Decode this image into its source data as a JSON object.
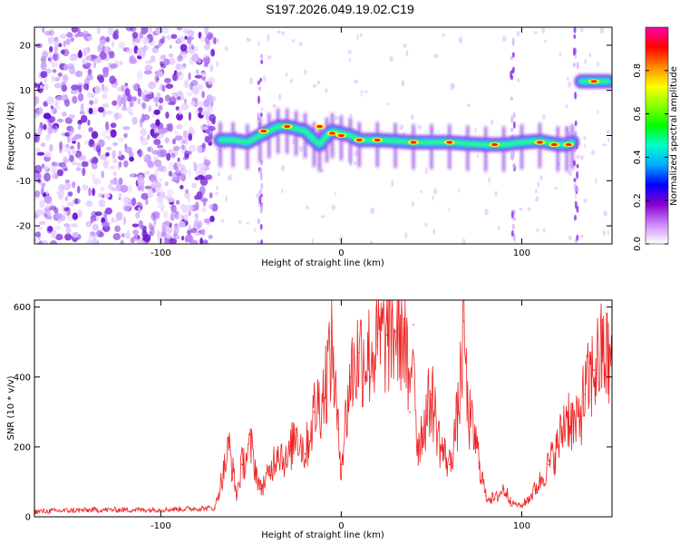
{
  "title": "S197.2026.049.19.02.C19",
  "colorbar": {
    "label": "Normalized spectral amplitude",
    "ticks": [
      "0.0",
      "0.2",
      "0.4",
      "0.6",
      "0.8"
    ],
    "stops": [
      "#ffffff",
      "#cc88ff",
      "#8800cc",
      "#0000ff",
      "#00aaff",
      "#00ffcc",
      "#00ff00",
      "#88ff00",
      "#ffff00",
      "#ff8800",
      "#ff0000",
      "#ff00aa"
    ]
  },
  "chart_data": [
    {
      "type": "heatmap",
      "xlabel": "Height of straight line (km)",
      "ylabel": "Frequency (Hz)",
      "xlim": [
        -170,
        150
      ],
      "ylim": [
        -24,
        24
      ],
      "xticks": [
        -100,
        0,
        100
      ],
      "xtick_labels": [
        "-100",
        "0",
        "100"
      ],
      "yticks": [
        20,
        10,
        0,
        -10,
        -20
      ],
      "ytick_labels": [
        "20",
        "10",
        "0",
        "-10",
        "-20"
      ],
      "noise_region_x": [
        -170,
        -70
      ],
      "ridge": {
        "x": [
          -67,
          -60,
          -52,
          -45,
          -40,
          -35,
          -30,
          -25,
          -20,
          -15,
          -12,
          -8,
          -5,
          0,
          5,
          10,
          20,
          30,
          40,
          50,
          60,
          70,
          80,
          90,
          100,
          110,
          120,
          125,
          128
        ],
        "y": [
          -1,
          -1,
          -1.5,
          0,
          1,
          2,
          2,
          1.5,
          1,
          -1,
          -2,
          0,
          1,
          0.5,
          0,
          -1,
          -1,
          -1.2,
          -1.5,
          -1.5,
          -1.5,
          -1.8,
          -2,
          -2,
          -1.5,
          -1.2,
          -2,
          -2,
          -1.5
        ]
      },
      "high_segment": {
        "x": [
          133,
          148
        ],
        "y": [
          12,
          12
        ]
      },
      "hot_spots": [
        {
          "x": -12,
          "y": 2
        },
        {
          "x": -5,
          "y": 0.5
        },
        {
          "x": 0,
          "y": 0
        },
        {
          "x": 10,
          "y": -1
        },
        {
          "x": 20,
          "y": -1
        },
        {
          "x": -43,
          "y": 1
        },
        {
          "x": -30,
          "y": 2
        },
        {
          "x": 40,
          "y": -1.5
        },
        {
          "x": 60,
          "y": -1.5
        },
        {
          "x": 85,
          "y": -2
        },
        {
          "x": 110,
          "y": -1.5
        },
        {
          "x": 118,
          "y": -2
        },
        {
          "x": 126,
          "y": -2
        },
        {
          "x": 140,
          "y": 12
        }
      ]
    },
    {
      "type": "line",
      "xlabel": "Height of straight line (km)",
      "ylabel": "SNR (10 * v/v)",
      "xlim": [
        -170,
        150
      ],
      "ylim": [
        0,
        620
      ],
      "xticks": [
        -100,
        0,
        100
      ],
      "xtick_labels": [
        "-100",
        "0",
        "100"
      ],
      "yticks": [
        0,
        200,
        400,
        600
      ],
      "ytick_labels": [
        "0",
        "200",
        "400",
        "600"
      ],
      "series": [
        {
          "color": "#ee2222",
          "x": [
            -170,
            -150,
            -130,
            -110,
            -90,
            -70,
            -62,
            -58,
            -55,
            -50,
            -45,
            -40,
            -35,
            -30,
            -25,
            -20,
            -15,
            -10,
            -5,
            -2,
            0,
            5,
            10,
            15,
            20,
            25,
            30,
            35,
            38,
            40,
            42,
            45,
            50,
            55,
            60,
            65,
            68,
            70,
            75,
            80,
            85,
            90,
            95,
            100,
            105,
            110,
            115,
            120,
            125,
            130,
            135,
            140,
            145,
            150
          ],
          "y": [
            15,
            18,
            20,
            20,
            22,
            25,
            200,
            60,
            150,
            200,
            80,
            120,
            200,
            150,
            250,
            180,
            300,
            350,
            500,
            250,
            150,
            400,
            470,
            460,
            490,
            520,
            530,
            540,
            300,
            550,
            200,
            250,
            350,
            200,
            150,
            300,
            560,
            300,
            200,
            60,
            50,
            80,
            40,
            30,
            60,
            100,
            150,
            200,
            300,
            250,
            350,
            420,
            470,
            430
          ]
        }
      ]
    }
  ]
}
